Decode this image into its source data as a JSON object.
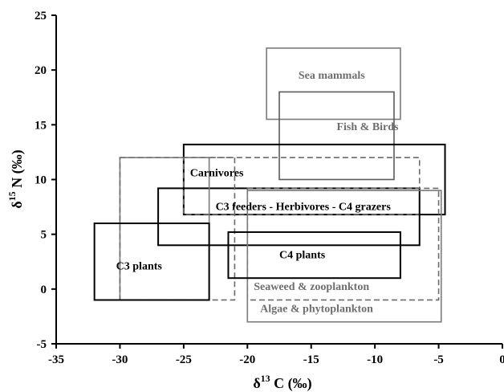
{
  "chart_data": {
    "type": "range-boxes",
    "xlabel": {
      "delta": "δ",
      "sup": "13",
      "rest": " C  (‰)"
    },
    "ylabel": {
      "delta": "δ",
      "sup": "15",
      "rest": " N (‰)"
    },
    "xlim": [
      -35,
      0
    ],
    "ylim": [
      -5,
      25
    ],
    "xticks": [
      "-35",
      "-30",
      "-25",
      "-20",
      "-15",
      "-10",
      "-5",
      "0"
    ],
    "yticks": [
      "-5",
      "0",
      "5",
      "10",
      "15",
      "20",
      "25"
    ],
    "grid": false,
    "regions": [
      {
        "name": "Sea mammals",
        "x": [
          -18.5,
          -8
        ],
        "y": [
          15.5,
          22
        ],
        "color": "#7a7a7a",
        "style": "solid",
        "weight": "thin",
        "label_at": [
          -16,
          19.2
        ],
        "label_color": "#6e6e6e"
      },
      {
        "name": "Fish & Birds",
        "x": [
          -17.5,
          -8.5
        ],
        "y": [
          10,
          18
        ],
        "color": "#5a5a5a",
        "style": "solid",
        "weight": "thin",
        "label_at": [
          -13,
          14.5
        ],
        "label_color": "#6e6e6e"
      },
      {
        "name": "Carnivores",
        "x": [
          -25,
          -4.5
        ],
        "y": [
          6.8,
          13.2
        ],
        "color": "#000000",
        "style": "solid",
        "weight": "thick",
        "label_at": [
          -24.5,
          10.3
        ],
        "label_color": "#000000"
      },
      {
        "name": "C3 feeders - Herbivores - C4 grazers",
        "x": [
          -25,
          -6.5
        ],
        "y": [
          6.8,
          12
        ],
        "color": "#6a6a6a",
        "style": "dashed",
        "weight": "thin",
        "label_at": null,
        "label_color": null
      },
      {
        "name": "C3 feeders - Herbivores - C4 grazers",
        "x": [
          -27,
          -6.5
        ],
        "y": [
          4,
          9.2
        ],
        "color": "#000000",
        "style": "solid",
        "weight": "thick",
        "label_at": [
          -22.5,
          7.2
        ],
        "label_color": "#000000"
      },
      {
        "name": "Seaweed & zooplankton",
        "x": [
          -20,
          -5
        ],
        "y": [
          -1,
          9.2
        ],
        "color": "#6a6a6a",
        "style": "dashed",
        "weight": "thin",
        "label_at": [
          -19.5,
          -0.1
        ],
        "label_color": "#6e6e6e"
      },
      {
        "name": "Algae & phytoplankton",
        "x": [
          -20,
          -4.8
        ],
        "y": [
          -3,
          9
        ],
        "color": "#7a7a7a",
        "style": "solid",
        "weight": "thin",
        "label_at": [
          -19,
          -2.1
        ],
        "label_color": "#6e6e6e"
      },
      {
        "name": "C3 plants (outer)",
        "x": [
          -30,
          -23
        ],
        "y": [
          -1,
          12
        ],
        "color": "#7a7a7a",
        "style": "solid",
        "weight": "thin",
        "label_at": null,
        "label_color": null
      },
      {
        "name": "C3 plants (dashed)",
        "x": [
          -30,
          -21
        ],
        "y": [
          -1,
          12
        ],
        "color": "#6a6a6a",
        "style": "dashed",
        "weight": "thin",
        "label_at": null,
        "label_color": null
      },
      {
        "name": "C3 plants",
        "x": [
          -32,
          -23
        ],
        "y": [
          -1,
          6
        ],
        "color": "#000000",
        "style": "solid",
        "weight": "thick",
        "label_at": [
          -30.3,
          1.8
        ],
        "label_color": "#000000"
      },
      {
        "name": "C4 plants",
        "x": [
          -21.5,
          -8
        ],
        "y": [
          1,
          5.2
        ],
        "color": "#000000",
        "style": "solid",
        "weight": "thick",
        "label_at": [
          -17.5,
          2.8
        ],
        "label_color": "#000000"
      }
    ]
  }
}
